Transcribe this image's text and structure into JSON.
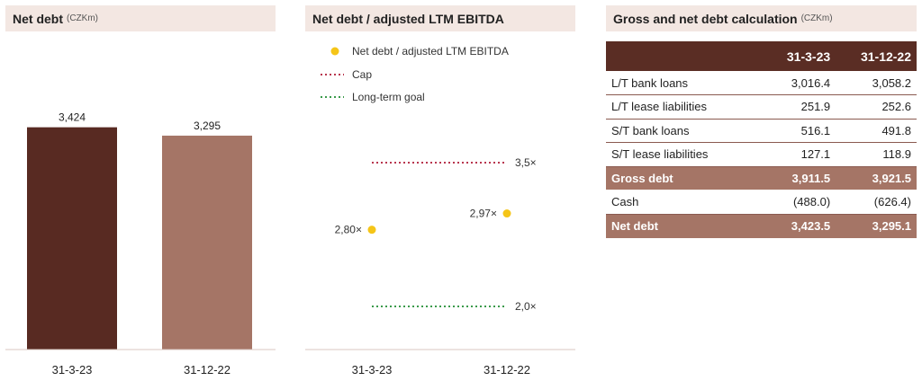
{
  "panels": {
    "net_debt": {
      "title": "Net debt",
      "unit": "(CZKm)"
    },
    "ratio": {
      "title": "Net debt / adjusted LTM EBITDA"
    },
    "calc": {
      "title": "Gross and net debt calculation",
      "unit": "(CZKm)"
    }
  },
  "chart_data": [
    {
      "type": "bar",
      "title": "Net debt",
      "categories": [
        "31-3-23",
        "31-12-22"
      ],
      "values": [
        3424,
        3295
      ],
      "data_labels": [
        "3,424",
        "3,295"
      ],
      "ylim": [
        0,
        4900
      ],
      "colors": [
        "#582a22",
        "#a57566"
      ],
      "grid": false
    },
    {
      "type": "scatter",
      "title": "Net debt / adjusted LTM EBITDA",
      "categories": [
        "31-3-23",
        "31-12-22"
      ],
      "series": [
        {
          "name": "Net debt / adjusted LTM EBITDA",
          "values": [
            2.8,
            2.97
          ],
          "labels": [
            "2,80×",
            "2,97×"
          ],
          "color": "#f5c518"
        }
      ],
      "reference_lines": [
        {
          "name": "Cap",
          "value": 3.5,
          "label": "3,5×",
          "color": "#b8364e"
        },
        {
          "name": "Long-term goal",
          "value": 2.0,
          "label": "2,0×",
          "color": "#3a9a4a"
        }
      ],
      "ylim": [
        1.5,
        4.0
      ],
      "legend_position": "top-left",
      "grid": false
    }
  ],
  "table": {
    "columns": [
      "",
      "31-3-23",
      "31-12-22"
    ],
    "rows": [
      {
        "label": "L/T bank loans",
        "v1": "3,016.4",
        "v2": "3,058.2",
        "highlight": false
      },
      {
        "label": "L/T lease liabilities",
        "v1": "251.9",
        "v2": "252.6",
        "highlight": false
      },
      {
        "label": "S/T bank loans",
        "v1": "516.1",
        "v2": "491.8",
        "highlight": false
      },
      {
        "label": "S/T lease liabilities",
        "v1": "127.1",
        "v2": "118.9",
        "highlight": false
      },
      {
        "label": "Gross debt",
        "v1": "3,911.5",
        "v2": "3,921.5",
        "highlight": true
      },
      {
        "label": "Cash",
        "v1": "(488.0)",
        "v2": "(626.4)",
        "highlight": false
      },
      {
        "label": "Net debt",
        "v1": "3,423.5",
        "v2": "3,295.1",
        "highlight": true
      }
    ]
  }
}
